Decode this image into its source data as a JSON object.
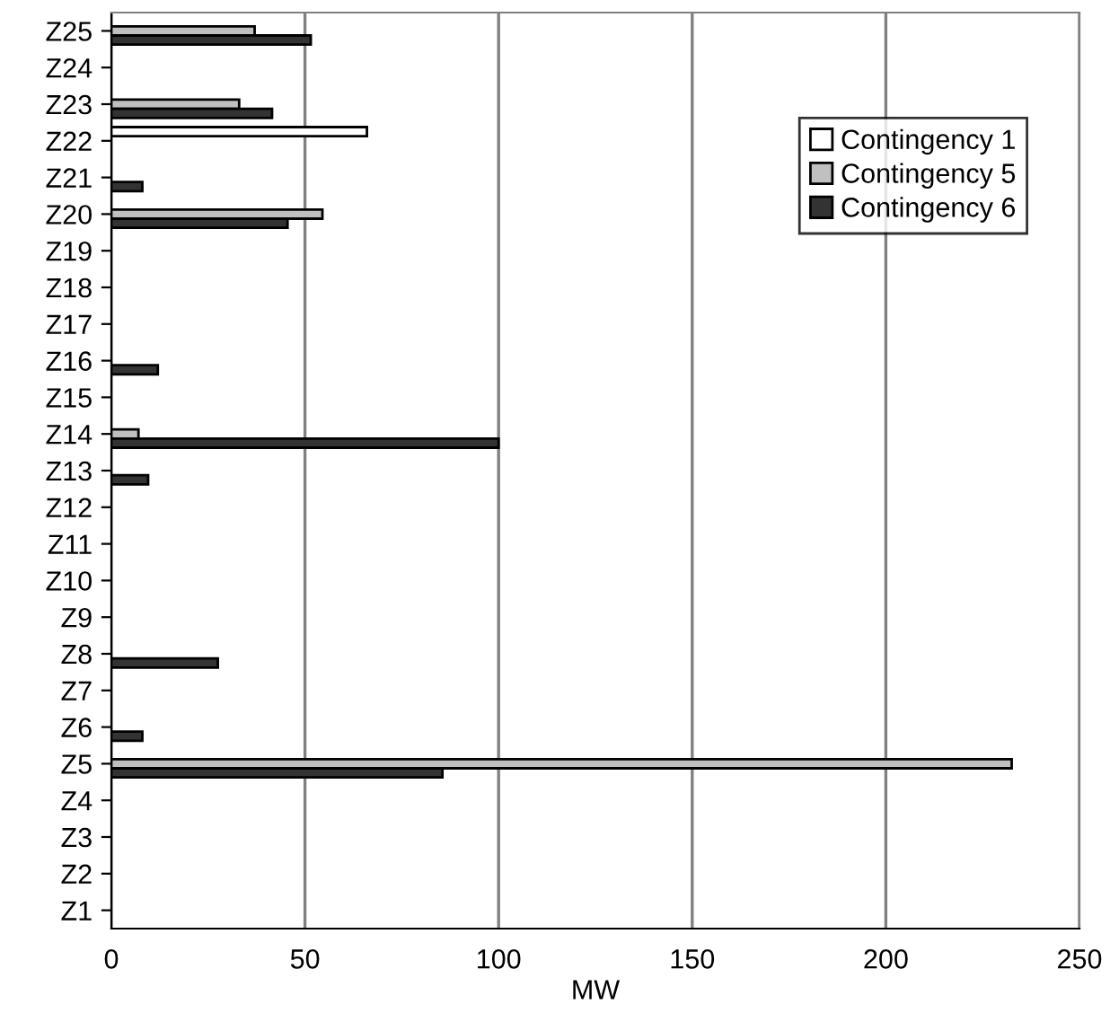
{
  "chart_data": {
    "type": "bar",
    "orientation": "horizontal",
    "xlabel": "MW",
    "categories": [
      "Z25",
      "Z24",
      "Z23",
      "Z22",
      "Z21",
      "Z20",
      "Z19",
      "Z18",
      "Z17",
      "Z16",
      "Z15",
      "Z14",
      "Z13",
      "Z12",
      "Z11",
      "Z10",
      "Z9",
      "Z8",
      "Z7",
      "Z6",
      "Z5",
      "Z4",
      "Z3",
      "Z2",
      "Z1"
    ],
    "series": [
      {
        "name": "Contingency 1",
        "color": "#ffffff",
        "values": [
          null,
          null,
          null,
          66,
          null,
          null,
          null,
          null,
          null,
          null,
          null,
          null,
          null,
          null,
          null,
          null,
          null,
          null,
          null,
          null,
          null,
          null,
          null,
          null,
          null
        ]
      },
      {
        "name": "Contingency 5",
        "color": "#c0c0c0",
        "values": [
          37,
          null,
          33,
          null,
          null,
          54.5,
          null,
          null,
          null,
          null,
          null,
          7,
          null,
          null,
          null,
          null,
          null,
          null,
          null,
          null,
          232.5,
          null,
          null,
          null,
          null
        ]
      },
      {
        "name": "Contingency 6",
        "color": "#333333",
        "values": [
          51.5,
          null,
          41.5,
          null,
          8,
          45.5,
          null,
          null,
          null,
          12,
          null,
          100,
          9.5,
          null,
          null,
          null,
          null,
          27.5,
          null,
          8,
          85.5,
          null,
          null,
          null,
          null
        ]
      }
    ],
    "xlim": [
      0,
      250
    ],
    "xticks": [
      0,
      50,
      100,
      150,
      200,
      250
    ],
    "grid": "x",
    "legend": "top right"
  }
}
